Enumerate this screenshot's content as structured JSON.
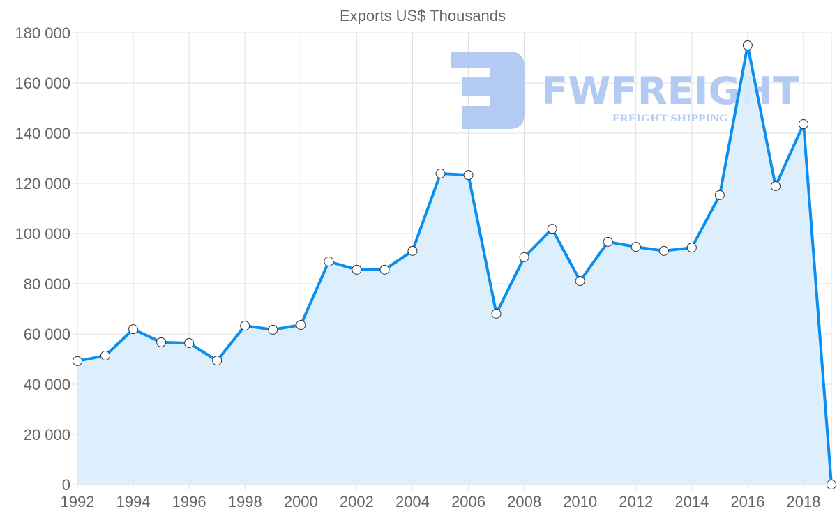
{
  "chart_data": {
    "type": "line",
    "title": "Exports US$ Thousands",
    "xlabel": "",
    "ylabel": "",
    "x": [
      1992,
      1993,
      1994,
      1995,
      1996,
      1997,
      1998,
      1999,
      2000,
      2001,
      2002,
      2003,
      2004,
      2005,
      2006,
      2007,
      2008,
      2009,
      2010,
      2011,
      2012,
      2013,
      2014,
      2015,
      2016,
      2017,
      2018,
      2019
    ],
    "series": [
      {
        "name": "Exports US$ Thousands",
        "values": [
          49200,
          51400,
          61900,
          56700,
          56400,
          49400,
          63300,
          61700,
          63600,
          88900,
          85600,
          85600,
          93100,
          123900,
          123300,
          68100,
          90600,
          101900,
          81100,
          96700,
          94700,
          93100,
          94400,
          115300,
          175000,
          118900,
          143600,
          0
        ]
      }
    ],
    "xticks": [
      "1992",
      "1994",
      "1996",
      "1998",
      "2000",
      "2002",
      "2004",
      "2006",
      "2008",
      "2010",
      "2012",
      "2014",
      "2016",
      "2018"
    ],
    "yticks": [
      "0",
      "20 000",
      "40 000",
      "60 000",
      "80 000",
      "100 000",
      "120 000",
      "140 000",
      "160 000",
      "180 000"
    ],
    "ylim": [
      0,
      180000
    ],
    "xlim": [
      1992,
      2019
    ],
    "grid": true,
    "legend": "none",
    "colors": {
      "line": "#0a8ff0",
      "fill": "#d9ecfc",
      "grid": "#e0e0e0",
      "point_fill": "#ffffff",
      "point_stroke": "#333333"
    }
  },
  "watermark": {
    "brand": "FWFREIGHT",
    "tagline": "FREIGHT SHIPPING",
    "color": "#b3cbf3"
  }
}
